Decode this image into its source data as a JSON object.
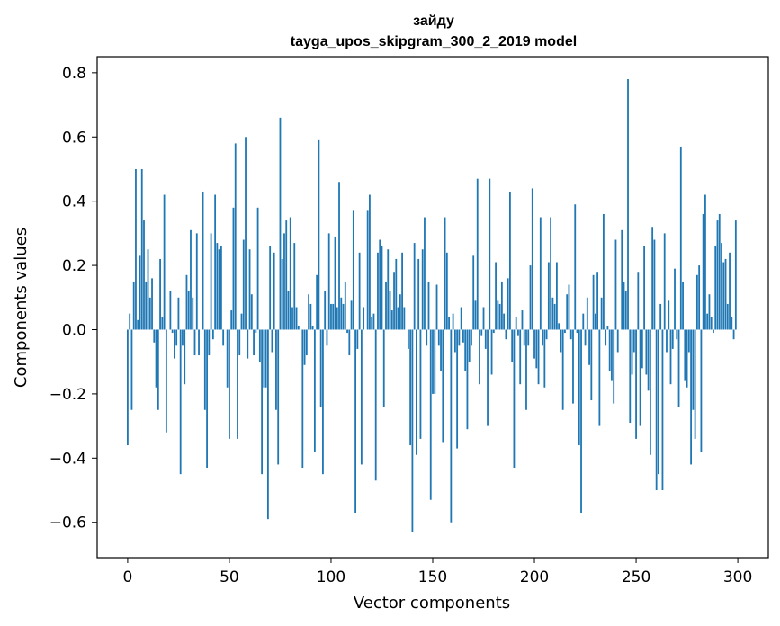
{
  "chart_data": {
    "type": "bar",
    "title": "зайду",
    "subtitle": "tayga_upos_skipgram_300_2_2019 model",
    "xlabel": "Vector components",
    "ylabel": "Components values",
    "xlim": [
      -15,
      315
    ],
    "ylim": [
      -0.71,
      0.85
    ],
    "xticks": [
      0,
      50,
      100,
      150,
      200,
      250,
      300
    ],
    "xtick_labels": [
      "0",
      "50",
      "100",
      "150",
      "200",
      "250",
      "300"
    ],
    "yticks": [
      -0.6,
      -0.4,
      -0.2,
      0.0,
      0.2,
      0.4,
      0.6,
      0.8
    ],
    "ytick_labels": [
      "−0.6",
      "−0.4",
      "−0.2",
      "0.0",
      "0.2",
      "0.4",
      "0.6",
      "0.8"
    ],
    "grid": false,
    "bar_color": "#1f77b4",
    "values": [
      -0.36,
      0.05,
      -0.25,
      0.15,
      0.5,
      0.03,
      0.23,
      0.5,
      0.34,
      0.15,
      0.25,
      0.1,
      0.16,
      -0.04,
      -0.18,
      -0.25,
      0.22,
      0.04,
      0.42,
      -0.32,
      0.0,
      0.12,
      -0.01,
      -0.09,
      -0.05,
      0.1,
      -0.45,
      -0.05,
      -0.17,
      0.17,
      0.12,
      0.31,
      0.1,
      -0.08,
      0.3,
      -0.08,
      0.0,
      0.43,
      -0.25,
      -0.43,
      -0.08,
      0.3,
      -0.03,
      0.42,
      0.27,
      0.25,
      0.26,
      -0.05,
      0.0,
      -0.18,
      -0.34,
      0.06,
      0.38,
      0.58,
      -0.34,
      -0.08,
      0.05,
      0.28,
      0.6,
      -0.09,
      0.25,
      0.11,
      -0.08,
      -0.01,
      0.38,
      -0.1,
      -0.45,
      -0.18,
      -0.18,
      -0.59,
      0.26,
      -0.07,
      0.24,
      -0.25,
      -0.42,
      0.66,
      0.22,
      0.3,
      0.34,
      0.12,
      0.35,
      0.07,
      0.27,
      0.07,
      0.01,
      0.0,
      -0.43,
      -0.11,
      -0.08,
      0.11,
      0.08,
      0.01,
      -0.38,
      0.17,
      0.59,
      -0.24,
      -0.45,
      0.12,
      -0.05,
      0.3,
      0.08,
      0.08,
      0.29,
      0.07,
      0.46,
      0.1,
      0.08,
      0.15,
      -0.01,
      -0.08,
      0.09,
      0.37,
      -0.57,
      -0.06,
      0.24,
      -0.42,
      0.07,
      0.0,
      0.37,
      0.42,
      0.04,
      0.05,
      -0.47,
      0.24,
      0.28,
      0.26,
      -0.24,
      0.15,
      0.25,
      0.12,
      0.06,
      0.18,
      0.22,
      0.07,
      0.11,
      0.24,
      0.07,
      0.0,
      -0.06,
      -0.36,
      -0.63,
      0.27,
      -0.39,
      0.22,
      -0.34,
      0.25,
      0.35,
      -0.05,
      0.15,
      -0.53,
      -0.2,
      -0.2,
      0.14,
      -0.05,
      -0.13,
      -0.35,
      0.35,
      0.24,
      0.04,
      -0.6,
      0.05,
      -0.07,
      -0.37,
      -0.05,
      0.07,
      -0.04,
      -0.13,
      -0.31,
      -0.1,
      -0.05,
      0.23,
      0.09,
      0.47,
      -0.17,
      -0.02,
      0.07,
      -0.06,
      -0.3,
      0.47,
      -0.14,
      -0.01,
      0.21,
      0.09,
      0.08,
      0.15,
      0.05,
      -0.03,
      0.16,
      0.43,
      -0.1,
      -0.43,
      0.04,
      -0.02,
      -0.17,
      0.06,
      -0.05,
      -0.25,
      -0.05,
      0.2,
      0.44,
      -0.09,
      -0.12,
      -0.17,
      0.35,
      -0.05,
      -0.18,
      -0.03,
      0.21,
      0.35,
      0.1,
      0.08,
      0.21,
      0.02,
      -0.07,
      -0.25,
      -0.01,
      0.11,
      0.14,
      -0.03,
      -0.23,
      0.39,
      -0.01,
      -0.36,
      -0.57,
      0.05,
      -0.05,
      0.1,
      -0.11,
      -0.22,
      0.17,
      0.05,
      0.18,
      -0.3,
      0.1,
      0.36,
      -0.05,
      0.01,
      -0.13,
      -0.16,
      -0.23,
      0.28,
      -0.07,
      0.0,
      0.31,
      0.15,
      0.12,
      0.78,
      -0.29,
      -0.14,
      -0.07,
      -0.34,
      0.18,
      -0.3,
      -0.12,
      0.26,
      -0.14,
      -0.19,
      -0.39,
      0.32,
      0.28,
      -0.5,
      -0.45,
      0.08,
      -0.5,
      0.3,
      -0.07,
      0.09,
      -0.17,
      -0.06,
      0.19,
      -0.03,
      -0.24,
      0.57,
      0.15,
      -0.16,
      -0.18,
      -0.07,
      -0.42,
      -0.25,
      -0.34,
      0.17,
      0.2,
      -0.38,
      0.36,
      0.42,
      0.05,
      0.11,
      0.04,
      -0.01,
      0.26,
      0.34,
      0.36,
      0.27,
      0.21,
      0.22,
      0.08,
      0.24,
      0.04,
      -0.03,
      0.34
    ]
  }
}
